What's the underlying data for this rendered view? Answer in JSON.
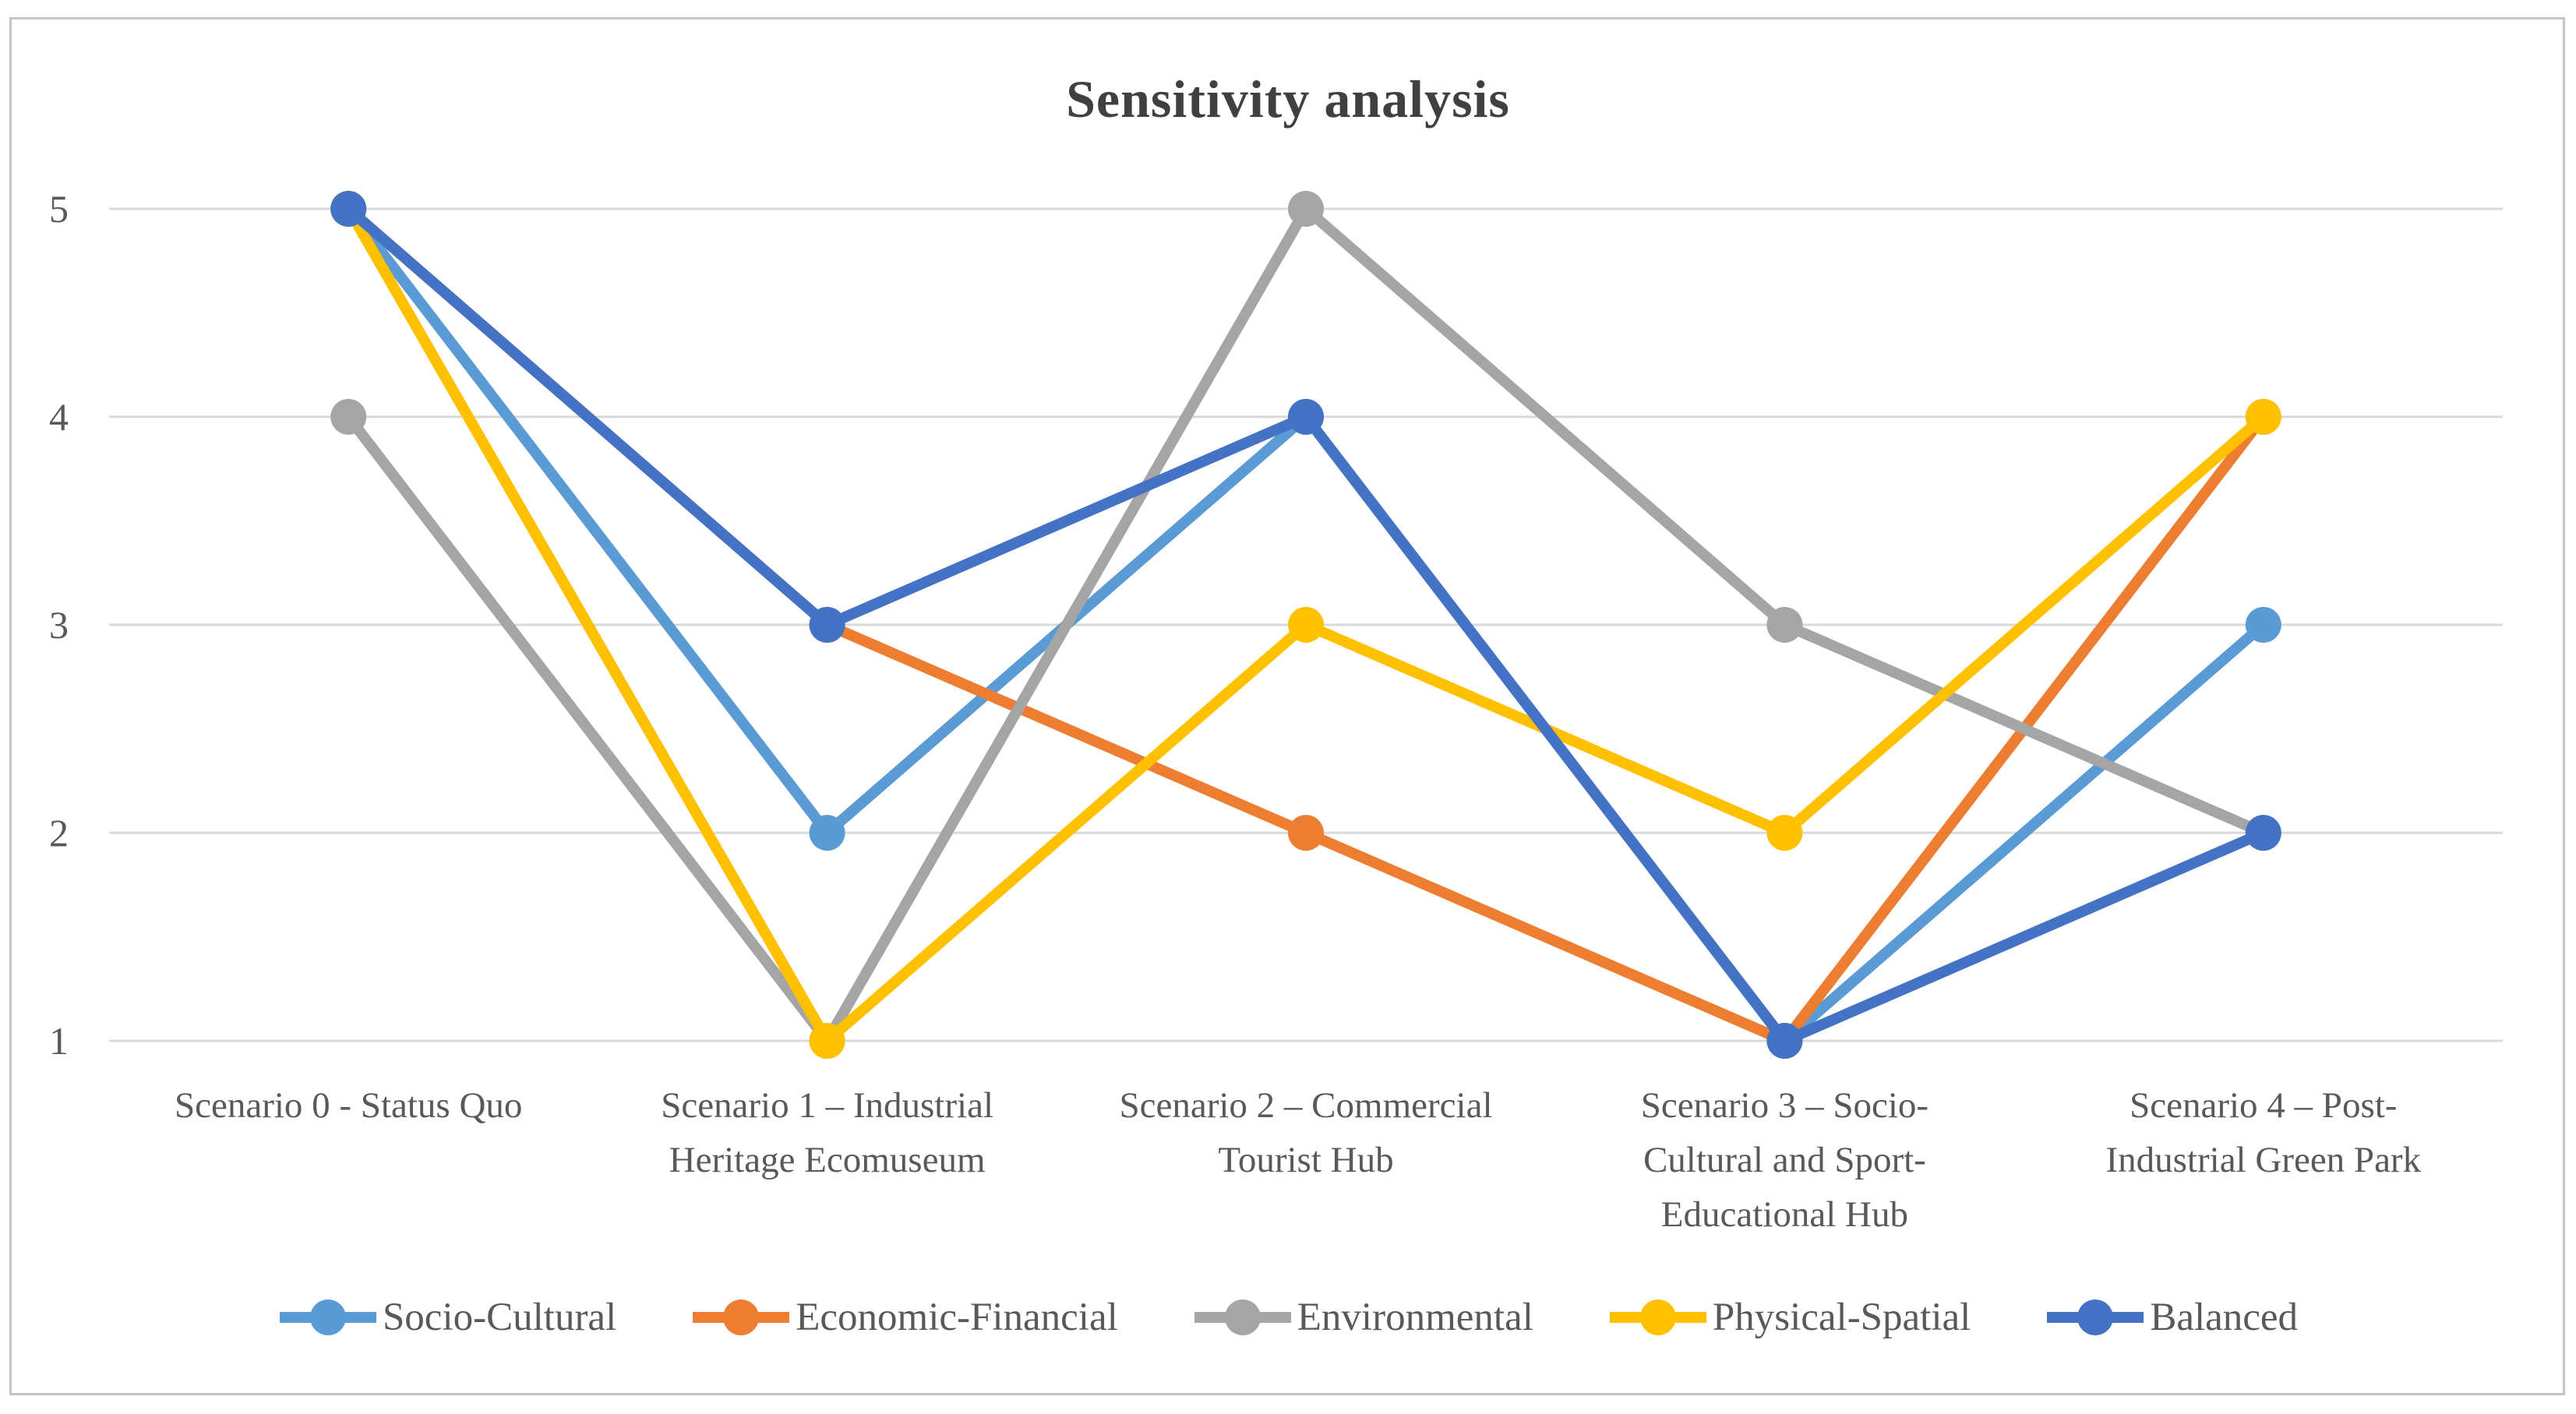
{
  "chart_data": {
    "type": "line",
    "title": "Sensitivity analysis",
    "categories": [
      [
        "Scenario 0 - Status Quo"
      ],
      [
        "Scenario 1 – Industrial",
        "Heritage Ecomuseum"
      ],
      [
        "Scenario 2 – Commercial",
        "Tourist Hub"
      ],
      [
        "Scenario 3 – Socio-",
        "Cultural and Sport-",
        "Educational Hub"
      ],
      [
        "Scenario 4 – Post-",
        "Industrial Green Park"
      ]
    ],
    "series": [
      {
        "name": "Socio-Cultural",
        "color": "#5B9BD5",
        "values": [
          5,
          2,
          4,
          1,
          3
        ]
      },
      {
        "name": "Economic-Financial",
        "color": "#ED7D31",
        "values": [
          5,
          3,
          2,
          1,
          4
        ]
      },
      {
        "name": "Environmental",
        "color": "#A5A5A5",
        "values": [
          4,
          1,
          5,
          3,
          2
        ]
      },
      {
        "name": "Physical-Spatial",
        "color": "#FFC000",
        "values": [
          5,
          1,
          3,
          2,
          4
        ]
      },
      {
        "name": "Balanced",
        "color": "#4472C4",
        "values": [
          5,
          3,
          4,
          1,
          2
        ]
      }
    ],
    "y_ticks": [
      "5",
      "4",
      "3",
      "2",
      "1"
    ],
    "ylim": [
      1,
      5
    ],
    "grid": true,
    "marker": "circle",
    "legend_position": "bottom",
    "colors": {
      "title_text": "#404040",
      "axis_text": "#595959",
      "gridline": "#D9D9D9",
      "chart_border": "#C6C6C6",
      "background": "#FFFFFF"
    }
  }
}
